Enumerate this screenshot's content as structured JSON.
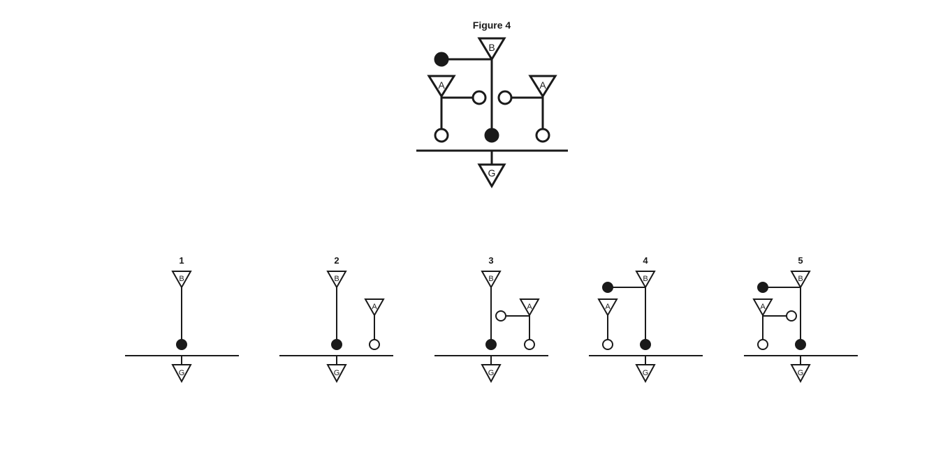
{
  "diagram": {
    "title": "Figure 4",
    "node_labels": {
      "b": "B",
      "a": "A",
      "g": "G"
    },
    "options": [
      {
        "label": "1"
      },
      {
        "label": "2"
      },
      {
        "label": "3"
      },
      {
        "label": "4"
      },
      {
        "label": "5"
      }
    ]
  },
  "colors": {
    "ink": "#1a1a1a",
    "background": "#ffffff"
  }
}
